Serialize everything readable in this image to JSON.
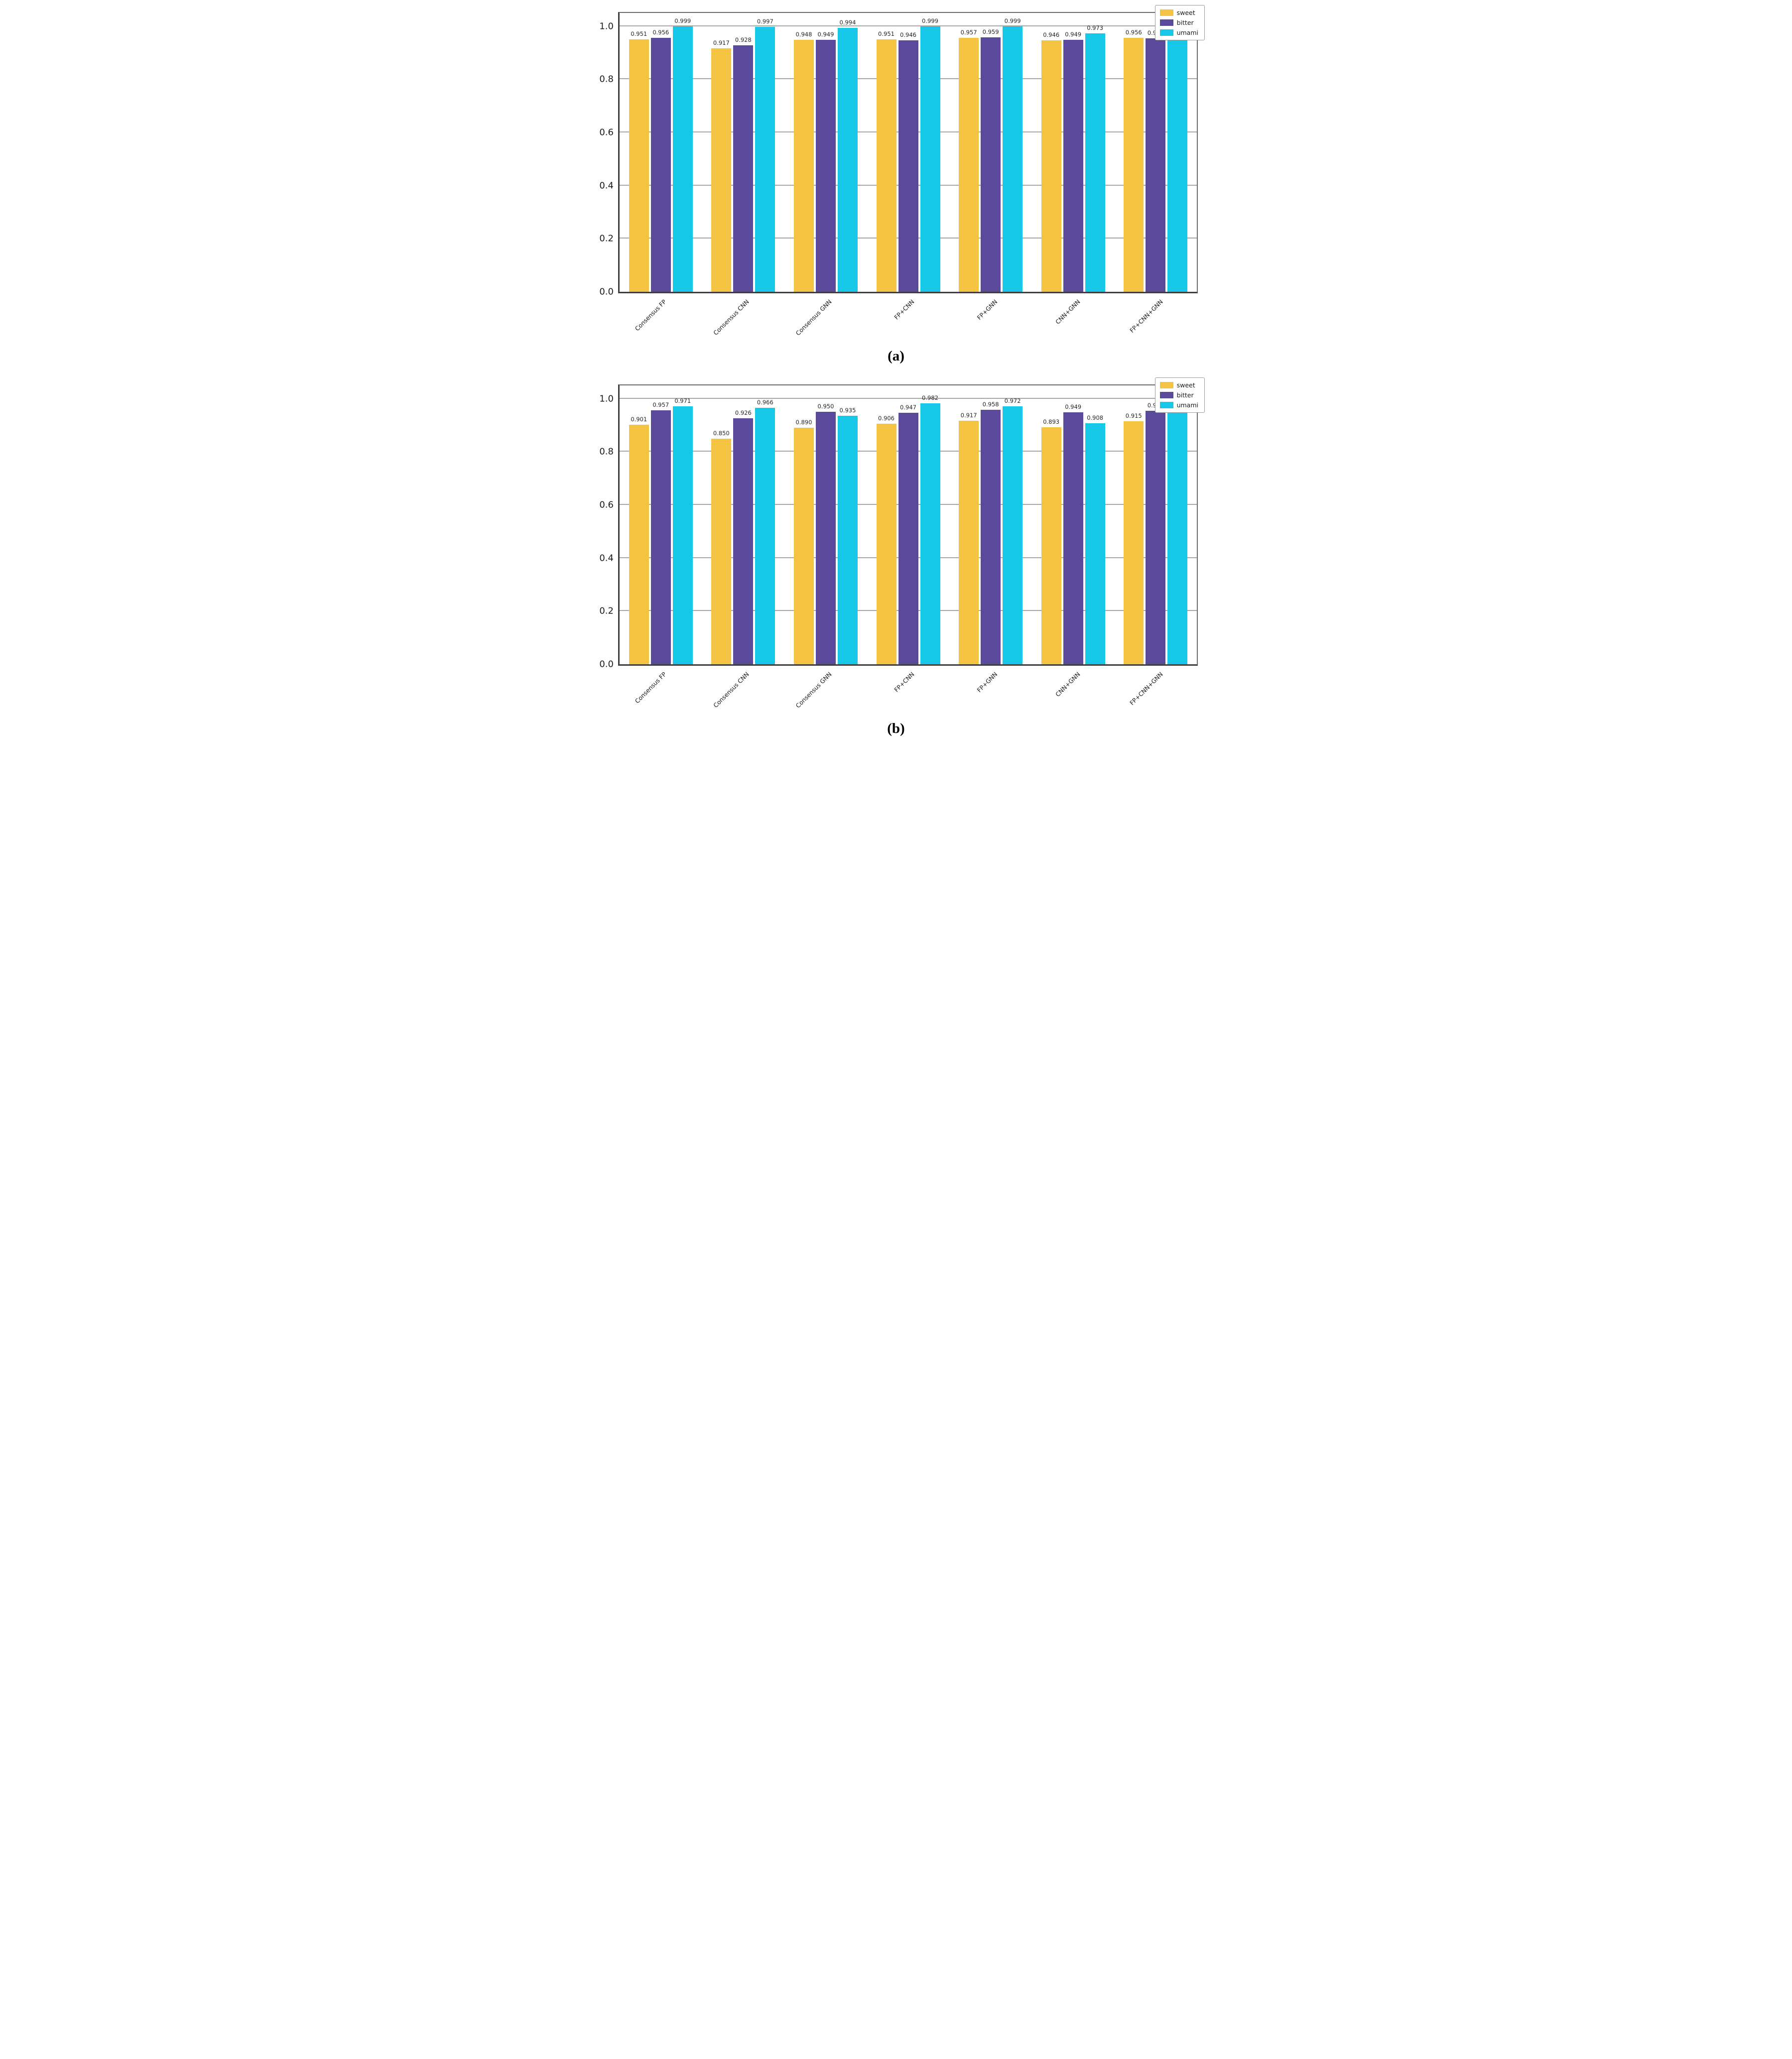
{
  "chart_data": [
    {
      "type": "bar",
      "title": "",
      "caption": "(a)",
      "categories": [
        "Consensus FP",
        "Consensus CNN",
        "Consensus GNN",
        "FP+CNN",
        "FP+GNN",
        "CNN+GNN",
        "FP+CNN+GNN"
      ],
      "series": [
        {
          "name": "sweet",
          "color": "#F5C342",
          "values": [
            0.951,
            0.917,
            0.948,
            0.951,
            0.957,
            0.946,
            0.956
          ]
        },
        {
          "name": "bitter",
          "color": "#5B4A9B",
          "values": [
            0.956,
            0.928,
            0.949,
            0.946,
            0.959,
            0.949,
            0.955
          ]
        },
        {
          "name": "umami",
          "color": "#17C7E8",
          "values": [
            0.999,
            0.997,
            0.994,
            0.999,
            0.999,
            0.973,
            0.999
          ]
        }
      ],
      "xlabel": "",
      "ylabel": "",
      "ylim": [
        0,
        1.05
      ],
      "yticks": [
        "0.0",
        "0.2",
        "0.4",
        "0.6",
        "0.8",
        "1.0"
      ],
      "grid": true,
      "legend_position": "top-right",
      "legend": [
        "sweet",
        "bitter",
        "umami"
      ]
    },
    {
      "type": "bar",
      "title": "",
      "caption": "(b)",
      "categories": [
        "Consensus FP",
        "Consensus CNN",
        "Consensus GNN",
        "FP+CNN",
        "FP+GNN",
        "CNN+GNN",
        "FP+CNN+GNN"
      ],
      "series": [
        {
          "name": "sweet",
          "color": "#F5C342",
          "values": [
            0.901,
            0.85,
            0.89,
            0.906,
            0.917,
            0.893,
            0.915
          ]
        },
        {
          "name": "bitter",
          "color": "#5B4A9B",
          "values": [
            0.957,
            0.926,
            0.95,
            0.947,
            0.958,
            0.949,
            0.955
          ]
        },
        {
          "name": "umami",
          "color": "#17C7E8",
          "values": [
            0.971,
            0.966,
            0.935,
            0.982,
            0.972,
            0.908,
            0.982
          ]
        }
      ],
      "xlabel": "",
      "ylabel": "",
      "ylim": [
        0,
        1.05
      ],
      "yticks": [
        "0.0",
        "0.2",
        "0.4",
        "0.6",
        "0.8",
        "1.0"
      ],
      "grid": true,
      "legend_position": "top-right",
      "legend": [
        "sweet",
        "bitter",
        "umami"
      ]
    }
  ],
  "style": {
    "grid_color": "#a8a8a8",
    "spine_color": "#3f3f3f",
    "sweet_color": "#F5C342",
    "bitter_color": "#5B4A9B",
    "umami_color": "#17C7E8"
  }
}
